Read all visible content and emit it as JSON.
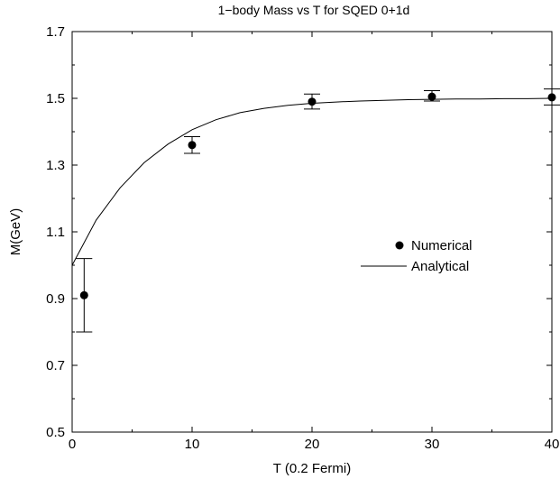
{
  "chart_data": {
    "type": "scatter",
    "title": "1−body Mass vs T for SQED 0+1d",
    "xlabel": "T (0.2 Fermi)",
    "ylabel": "M(GeV)",
    "xlim": [
      0,
      40
    ],
    "ylim": [
      0.5,
      1.7
    ],
    "xticks": [
      0,
      10,
      20,
      30,
      40
    ],
    "yticks": [
      0.5,
      0.7,
      0.9,
      1.1,
      1.3,
      1.5,
      1.7
    ],
    "x_tick_labels": [
      "0",
      "10",
      "20",
      "30",
      "40"
    ],
    "y_tick_labels": [
      "0.5",
      "0.7",
      "0.9",
      "1.1",
      "1.3",
      "1.5",
      "1.7"
    ],
    "grid": false,
    "legend_position": "center-right",
    "series": [
      {
        "name": "Numerical",
        "style": "points-with-errorbars",
        "points": [
          {
            "x": 1,
            "y": 0.91,
            "err_low": 0.8,
            "err_high": 1.02
          },
          {
            "x": 10,
            "y": 1.36,
            "err_low": 1.335,
            "err_high": 1.385
          },
          {
            "x": 20,
            "y": 1.49,
            "err_low": 1.468,
            "err_high": 1.513
          },
          {
            "x": 30,
            "y": 1.505,
            "err_low": 1.492,
            "err_high": 1.523
          },
          {
            "x": 40,
            "y": 1.503,
            "err_low": 1.48,
            "err_high": 1.528
          }
        ]
      },
      {
        "name": "Analytical",
        "style": "line",
        "x": [
          0,
          2,
          4,
          6,
          8,
          10,
          12,
          14,
          16,
          18,
          20,
          22,
          24,
          26,
          28,
          30,
          32,
          34,
          36,
          38,
          40
        ],
        "y": [
          1.0,
          1.135,
          1.232,
          1.307,
          1.363,
          1.406,
          1.436,
          1.457,
          1.47,
          1.479,
          1.485,
          1.489,
          1.492,
          1.494,
          1.496,
          1.497,
          1.498,
          1.498,
          1.499,
          1.499,
          1.5
        ]
      }
    ]
  }
}
